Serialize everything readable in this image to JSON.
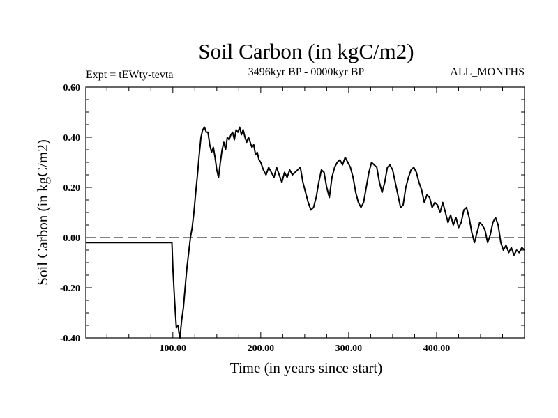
{
  "chart_data": {
    "type": "line",
    "title": "Soil Carbon (in kgC/m2)",
    "subtitle_left": "Expt = tEWty-tevta",
    "subtitle_center": "3496kyr BP - 0000kyr BP",
    "subtitle_right": "ALL_MONTHS",
    "xlabel": "Time (in years since start)",
    "ylabel": "Soil Carbon (in kgC/m2)",
    "xlim": [
      1,
      500
    ],
    "ylim": [
      -0.4,
      0.6
    ],
    "x_ticks": [
      100,
      200,
      300,
      400
    ],
    "x_tick_labels": [
      "100.00",
      "200.00",
      "300.00",
      "400.00"
    ],
    "y_ticks": [
      -0.4,
      -0.2,
      0.0,
      0.2,
      0.4,
      0.6
    ],
    "y_tick_labels": [
      "-0.40",
      "-0.20",
      "0.00",
      "0.20",
      "0.40",
      "0.60"
    ],
    "reference_line": {
      "y": 0.0,
      "style": "dashed"
    },
    "series": [
      {
        "name": "Soil Carbon",
        "color": "#000000",
        "x": [
          1,
          20,
          40,
          60,
          80,
          99,
          100,
          102,
          104,
          106,
          107,
          108,
          110,
          112,
          114,
          116,
          118,
          120,
          122,
          124,
          126,
          128,
          130,
          132,
          134,
          136,
          138,
          140,
          142,
          144,
          146,
          148,
          150,
          152,
          154,
          156,
          158,
          160,
          162,
          164,
          166,
          168,
          170,
          172,
          174,
          176,
          178,
          180,
          182,
          184,
          186,
          188,
          190,
          192,
          194,
          196,
          198,
          200,
          203,
          206,
          209,
          212,
          215,
          218,
          221,
          224,
          227,
          230,
          233,
          236,
          239,
          242,
          245,
          248,
          251,
          254,
          257,
          260,
          263,
          266,
          269,
          272,
          275,
          278,
          281,
          284,
          287,
          290,
          293,
          296,
          299,
          302,
          305,
          308,
          311,
          314,
          317,
          320,
          323,
          326,
          329,
          332,
          335,
          338,
          341,
          344,
          347,
          350,
          353,
          356,
          359,
          362,
          365,
          368,
          371,
          374,
          377,
          380,
          383,
          386,
          389,
          392,
          395,
          398,
          401,
          404,
          407,
          410,
          413,
          416,
          419,
          422,
          425,
          428,
          431,
          434,
          437,
          440,
          443,
          446,
          449,
          452,
          455,
          458,
          461,
          464,
          467,
          470,
          473,
          476,
          479,
          482,
          485,
          488,
          491,
          494,
          497,
          500
        ],
        "values": [
          -0.02,
          -0.02,
          -0.02,
          -0.02,
          -0.02,
          -0.02,
          -0.12,
          -0.25,
          -0.36,
          -0.35,
          -0.38,
          -0.4,
          -0.33,
          -0.28,
          -0.2,
          -0.12,
          -0.06,
          0.0,
          0.04,
          0.1,
          0.18,
          0.25,
          0.33,
          0.4,
          0.43,
          0.44,
          0.42,
          0.42,
          0.37,
          0.34,
          0.36,
          0.32,
          0.27,
          0.24,
          0.3,
          0.35,
          0.38,
          0.35,
          0.4,
          0.39,
          0.41,
          0.42,
          0.39,
          0.43,
          0.42,
          0.44,
          0.41,
          0.43,
          0.4,
          0.38,
          0.4,
          0.38,
          0.36,
          0.37,
          0.33,
          0.34,
          0.31,
          0.3,
          0.27,
          0.25,
          0.28,
          0.26,
          0.24,
          0.28,
          0.25,
          0.22,
          0.26,
          0.24,
          0.27,
          0.25,
          0.26,
          0.27,
          0.28,
          0.22,
          0.18,
          0.14,
          0.11,
          0.12,
          0.16,
          0.22,
          0.27,
          0.26,
          0.2,
          0.16,
          0.24,
          0.28,
          0.3,
          0.31,
          0.29,
          0.32,
          0.3,
          0.28,
          0.24,
          0.18,
          0.14,
          0.12,
          0.14,
          0.2,
          0.26,
          0.3,
          0.29,
          0.28,
          0.22,
          0.18,
          0.22,
          0.28,
          0.29,
          0.27,
          0.22,
          0.17,
          0.12,
          0.13,
          0.2,
          0.24,
          0.27,
          0.28,
          0.26,
          0.22,
          0.19,
          0.14,
          0.17,
          0.16,
          0.12,
          0.14,
          0.13,
          0.1,
          0.14,
          0.1,
          0.06,
          0.09,
          0.05,
          0.08,
          0.04,
          0.06,
          0.11,
          0.12,
          0.08,
          0.02,
          -0.02,
          0.02,
          0.06,
          0.05,
          0.03,
          -0.02,
          0.01,
          0.06,
          0.08,
          0.05,
          -0.02,
          -0.05,
          -0.03,
          -0.06,
          -0.04,
          -0.07,
          -0.05,
          -0.06,
          -0.04,
          -0.05
        ]
      }
    ]
  }
}
